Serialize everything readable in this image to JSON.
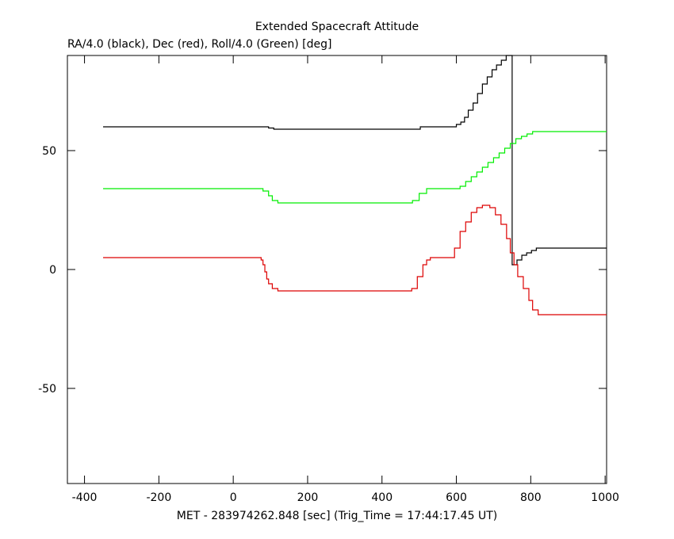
{
  "chart_data": {
    "type": "line",
    "step": true,
    "title": "Extended Spacecraft Attitude",
    "subtitle": "RA/4.0 (black), Dec (red), Roll/4.0 (Green) [deg]",
    "x_label": "MET - 283974262.848 [sec] (Trig_Time = 17:44:17.45 UT)",
    "xlim": [
      -446,
      1004
    ],
    "ylim": [
      -90,
      90
    ],
    "xticks": [
      -400,
      -200,
      0,
      200,
      400,
      600,
      800,
      1000
    ],
    "yticks": [
      -50,
      0,
      50
    ],
    "series": [
      {
        "color": "#000000",
        "x": [
          -350,
          95,
          109,
          503,
          600,
          612,
          622,
          632,
          645,
          657,
          670,
          683,
          696,
          708,
          721,
          734,
          750,
          763,
          776,
          789,
          802,
          815,
          1004
        ],
        "values": [
          60,
          59.5,
          59,
          60,
          61,
          62,
          64,
          67,
          70,
          74,
          78,
          81,
          84,
          86,
          88,
          90,
          2,
          4,
          6,
          7,
          8,
          9,
          9
        ]
      },
      {
        "color": "#00ee00",
        "x": [
          -350,
          80,
          95,
          105,
          120,
          482,
          500,
          520,
          600,
          610,
          625,
          640,
          655,
          670,
          685,
          700,
          715,
          730,
          745,
          760,
          775,
          790,
          805,
          1004
        ],
        "values": [
          34,
          33,
          31,
          29,
          28,
          29,
          32,
          34,
          34,
          35,
          37,
          39,
          41,
          43,
          45,
          47,
          49,
          51,
          53,
          55,
          56,
          57,
          58,
          58
        ]
      },
      {
        "color": "#dd0000",
        "x": [
          -350,
          75,
          80,
          85,
          90,
          95,
          105,
          120,
          480,
          495,
          510,
          520,
          530,
          590,
          595,
          610,
          625,
          640,
          655,
          670,
          690,
          705,
          720,
          735,
          745,
          755,
          765,
          780,
          795,
          805,
          820,
          1004
        ],
        "values": [
          5,
          4,
          2,
          -1,
          -4,
          -6,
          -8,
          -9,
          -8,
          -3,
          2,
          4,
          5,
          5,
          9,
          16,
          20,
          24,
          26,
          27,
          26,
          23,
          19,
          13,
          7,
          2,
          -3,
          -8,
          -13,
          -17,
          -19,
          -19
        ]
      }
    ]
  }
}
